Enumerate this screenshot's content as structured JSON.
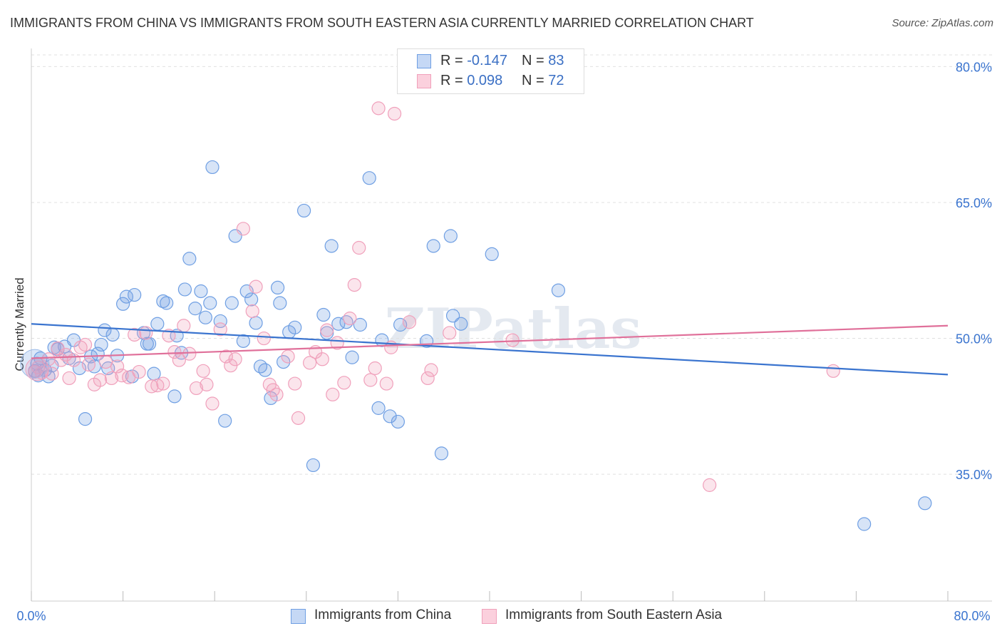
{
  "title": "IMMIGRANTS FROM CHINA VS IMMIGRANTS FROM SOUTH EASTERN ASIA CURRENTLY MARRIED CORRELATION CHART",
  "source": "Source: ZipAtlas.com",
  "watermark": "ZIPatlas",
  "legend_top": {
    "rows": [
      {
        "r_label": "R =",
        "r_value": "-0.147",
        "n_label": "N =",
        "n_value": "83"
      },
      {
        "r_label": "R =",
        "r_value": "0.098",
        "n_label": "N =",
        "n_value": "72"
      }
    ]
  },
  "chart_data": {
    "type": "scatter",
    "title": "IMMIGRANTS FROM CHINA VS IMMIGRANTS FROM SOUTH EASTERN ASIA CURRENTLY MARRIED CORRELATION CHART",
    "xlabel": "",
    "ylabel": "Currently Married",
    "xlim": [
      0,
      80
    ],
    "ylim": [
      21,
      82
    ],
    "x_tick_labels": [
      "0.0%",
      "80.0%"
    ],
    "y_ticks": [
      35,
      50,
      65,
      80
    ],
    "y_tick_labels": [
      "35.0%",
      "50.0%",
      "65.0%",
      "80.0%"
    ],
    "grid": "horizontal dashed",
    "legend_placement": "bottom",
    "colors": {
      "china": "#6f9fe3",
      "sea": "#f0a0bb",
      "china_line": "#3a74cf",
      "sea_line": "#e0709a"
    },
    "series": [
      {
        "name": "Immigrants from China",
        "r": -0.147,
        "n": 83,
        "trend": {
          "x0": 0,
          "y0": 51.6,
          "x1": 80,
          "y1": 46.0
        },
        "points": [
          [
            0.3,
            46.4
          ],
          [
            0.5,
            47.2
          ],
          [
            0.6,
            45.9
          ],
          [
            0.8,
            47.8
          ],
          [
            1.2,
            46.5
          ],
          [
            1.5,
            45.8
          ],
          [
            1.8,
            47.0
          ],
          [
            2.0,
            49.0
          ],
          [
            2.3,
            48.8
          ],
          [
            2.9,
            49.1
          ],
          [
            3.3,
            47.8
          ],
          [
            3.7,
            49.8
          ],
          [
            4.2,
            46.7
          ],
          [
            4.7,
            41.1
          ],
          [
            5.2,
            48.0
          ],
          [
            5.5,
            46.9
          ],
          [
            5.8,
            48.3
          ],
          [
            6.1,
            49.3
          ],
          [
            6.4,
            50.9
          ],
          [
            6.7,
            46.7
          ],
          [
            7.1,
            50.4
          ],
          [
            7.5,
            48.1
          ],
          [
            8.0,
            53.8
          ],
          [
            8.3,
            54.6
          ],
          [
            8.8,
            45.8
          ],
          [
            9.0,
            54.8
          ],
          [
            9.8,
            50.6
          ],
          [
            10.1,
            49.4
          ],
          [
            10.3,
            49.4
          ],
          [
            10.7,
            46.1
          ],
          [
            11.0,
            51.6
          ],
          [
            11.5,
            54.1
          ],
          [
            11.8,
            53.9
          ],
          [
            12.5,
            43.6
          ],
          [
            12.7,
            50.3
          ],
          [
            13.1,
            48.4
          ],
          [
            13.4,
            55.4
          ],
          [
            13.8,
            58.8
          ],
          [
            14.3,
            53.3
          ],
          [
            14.8,
            55.2
          ],
          [
            15.2,
            52.3
          ],
          [
            15.6,
            53.9
          ],
          [
            15.8,
            68.9
          ],
          [
            16.5,
            51.9
          ],
          [
            16.9,
            40.9
          ],
          [
            17.5,
            53.9
          ],
          [
            17.8,
            61.3
          ],
          [
            18.5,
            49.7
          ],
          [
            18.8,
            55.2
          ],
          [
            19.2,
            54.3
          ],
          [
            19.6,
            51.7
          ],
          [
            20.0,
            46.9
          ],
          [
            20.4,
            46.5
          ],
          [
            20.9,
            43.4
          ],
          [
            21.5,
            55.6
          ],
          [
            21.7,
            53.9
          ],
          [
            22.0,
            47.4
          ],
          [
            22.5,
            50.7
          ],
          [
            23.0,
            51.2
          ],
          [
            23.8,
            64.1
          ],
          [
            24.6,
            36.0
          ],
          [
            25.5,
            52.6
          ],
          [
            25.8,
            50.6
          ],
          [
            26.2,
            60.2
          ],
          [
            26.8,
            51.6
          ],
          [
            27.5,
            51.8
          ],
          [
            28.0,
            47.9
          ],
          [
            28.7,
            51.5
          ],
          [
            29.5,
            67.7
          ],
          [
            30.3,
            42.3
          ],
          [
            30.6,
            49.8
          ],
          [
            31.3,
            41.4
          ],
          [
            32.0,
            40.8
          ],
          [
            32.2,
            51.5
          ],
          [
            34.5,
            49.7
          ],
          [
            35.1,
            60.2
          ],
          [
            35.8,
            37.3
          ],
          [
            36.6,
            61.3
          ],
          [
            36.8,
            52.5
          ],
          [
            37.5,
            51.6
          ],
          [
            40.2,
            59.3
          ],
          [
            46.0,
            55.3
          ],
          [
            72.7,
            29.5
          ],
          [
            78.0,
            31.8
          ]
        ]
      },
      {
        "name": "Immigrants from South Eastern Asia",
        "r": 0.098,
        "n": 72,
        "trend": {
          "x0": 0,
          "y0": 47.8,
          "x1": 80,
          "y1": 51.4
        },
        "points": [
          [
            0.3,
            46.3
          ],
          [
            0.6,
            46.8
          ],
          [
            0.9,
            46.2
          ],
          [
            1.5,
            47.7
          ],
          [
            1.8,
            46.1
          ],
          [
            2.3,
            48.9
          ],
          [
            2.6,
            47.6
          ],
          [
            3.0,
            48.2
          ],
          [
            3.3,
            45.6
          ],
          [
            3.7,
            47.6
          ],
          [
            4.3,
            49.0
          ],
          [
            4.7,
            49.3
          ],
          [
            5.0,
            47.1
          ],
          [
            5.5,
            44.9
          ],
          [
            6.0,
            45.4
          ],
          [
            6.5,
            47.4
          ],
          [
            7.0,
            45.6
          ],
          [
            7.5,
            46.9
          ],
          [
            7.9,
            45.9
          ],
          [
            8.5,
            45.7
          ],
          [
            9.0,
            50.4
          ],
          [
            9.4,
            46.3
          ],
          [
            10.0,
            50.6
          ],
          [
            10.5,
            44.7
          ],
          [
            11.0,
            44.8
          ],
          [
            11.5,
            45.0
          ],
          [
            12.0,
            50.3
          ],
          [
            12.5,
            48.5
          ],
          [
            12.9,
            47.6
          ],
          [
            13.3,
            51.4
          ],
          [
            13.8,
            48.3
          ],
          [
            14.4,
            44.5
          ],
          [
            15.0,
            46.4
          ],
          [
            15.3,
            44.9
          ],
          [
            15.8,
            42.8
          ],
          [
            16.5,
            51.0
          ],
          [
            17.0,
            48.0
          ],
          [
            17.4,
            47.0
          ],
          [
            17.8,
            47.7
          ],
          [
            18.5,
            62.1
          ],
          [
            19.3,
            53.0
          ],
          [
            19.6,
            55.7
          ],
          [
            20.3,
            50.0
          ],
          [
            20.8,
            44.9
          ],
          [
            21.1,
            44.3
          ],
          [
            21.4,
            43.8
          ],
          [
            22.4,
            48.0
          ],
          [
            23.0,
            45.0
          ],
          [
            23.3,
            41.2
          ],
          [
            24.3,
            47.3
          ],
          [
            24.8,
            48.5
          ],
          [
            25.4,
            47.7
          ],
          [
            25.8,
            50.9
          ],
          [
            26.3,
            43.8
          ],
          [
            26.7,
            49.5
          ],
          [
            27.3,
            45.1
          ],
          [
            27.8,
            52.2
          ],
          [
            28.2,
            55.9
          ],
          [
            28.6,
            60.0
          ],
          [
            29.6,
            45.4
          ],
          [
            30.0,
            46.7
          ],
          [
            30.3,
            75.4
          ],
          [
            31.0,
            45.0
          ],
          [
            31.4,
            49.0
          ],
          [
            31.7,
            74.8
          ],
          [
            33.0,
            51.8
          ],
          [
            34.6,
            45.6
          ],
          [
            34.9,
            46.5
          ],
          [
            36.5,
            50.6
          ],
          [
            42.0,
            49.8
          ],
          [
            59.2,
            33.8
          ],
          [
            70.0,
            46.4
          ]
        ]
      }
    ]
  },
  "legend_bottom": [
    {
      "label": "Immigrants from China"
    },
    {
      "label": "Immigrants from South Eastern Asia"
    }
  ]
}
